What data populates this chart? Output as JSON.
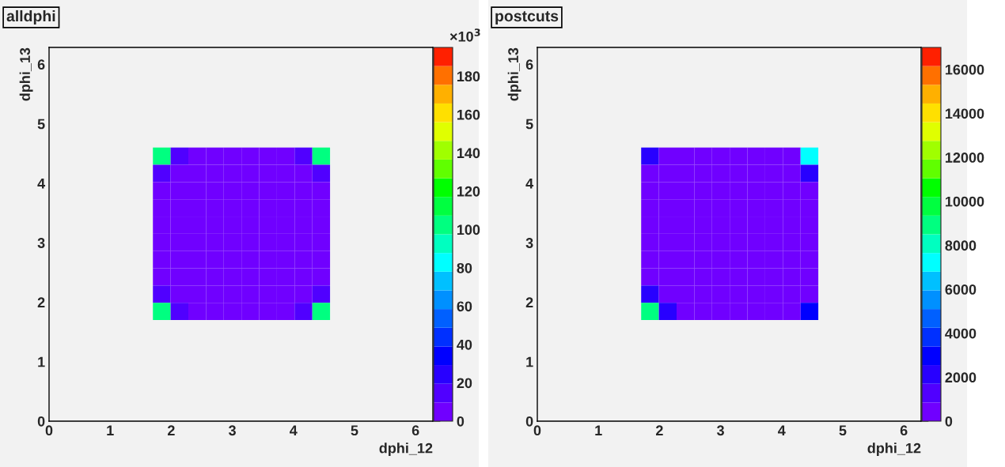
{
  "chart_data": [
    {
      "type": "heatmap",
      "title": "alldphi",
      "xlabel": "dphi_12",
      "ylabel": "dphi_13",
      "annotations": [
        "×10$^{3}$"
      ],
      "x": [
        1.845,
        2.135,
        2.425,
        2.715,
        3.005,
        3.295,
        3.585,
        3.875,
        4.165,
        4.455
      ],
      "y": [
        4.455,
        4.165,
        3.875,
        3.585,
        3.295,
        3.005,
        2.715,
        2.425,
        2.135,
        1.845
      ],
      "xlim": [
        0,
        6.283
      ],
      "ylim": [
        0,
        6.283
      ],
      "xticks": [
        0,
        1,
        2,
        3,
        4,
        5,
        6
      ],
      "yticks": [
        0,
        1,
        2,
        3,
        4,
        5,
        6
      ],
      "clim": [
        0,
        195
      ],
      "cticks": [
        0,
        20,
        40,
        60,
        80,
        100,
        120,
        140,
        160,
        180
      ],
      "colors": [
        "#7000ff",
        "#5000ff",
        "#2800ff",
        "#0000ff",
        "#0030ff",
        "#0060ff",
        "#0090ff",
        "#00c0ff",
        "#00ffff",
        "#00ffc0",
        "#00ff80",
        "#00ff40",
        "#00ff00",
        "#60ff00",
        "#a0ff00",
        "#e0ff00",
        "#ffe000",
        "#ffb000",
        "#ff7000",
        "#ff2000"
      ],
      "cells": [
        [
          100,
          15,
          3,
          3,
          3,
          3,
          3,
          3,
          15,
          100
        ],
        [
          15,
          5,
          3,
          3,
          3,
          3,
          3,
          3,
          5,
          15
        ],
        [
          3,
          3,
          3,
          3,
          3,
          3,
          3,
          3,
          3,
          3
        ],
        [
          3,
          3,
          3,
          3,
          3,
          3,
          3,
          3,
          3,
          3
        ],
        [
          3,
          3,
          3,
          3,
          3,
          3,
          3,
          3,
          3,
          3
        ],
        [
          3,
          3,
          3,
          3,
          3,
          3,
          3,
          3,
          3,
          3
        ],
        [
          3,
          3,
          3,
          3,
          3,
          3,
          3,
          3,
          3,
          3
        ],
        [
          3,
          3,
          3,
          3,
          3,
          3,
          3,
          3,
          3,
          3
        ],
        [
          15,
          5,
          3,
          3,
          3,
          3,
          3,
          3,
          5,
          15
        ],
        [
          100,
          15,
          3,
          3,
          3,
          3,
          3,
          3,
          15,
          100
        ]
      ]
    },
    {
      "type": "heatmap",
      "title": "postcuts",
      "xlabel": "dphi_12",
      "ylabel": "dphi_13",
      "x": [
        1.845,
        2.135,
        2.425,
        2.715,
        3.005,
        3.295,
        3.585,
        3.875,
        4.165,
        4.455
      ],
      "y": [
        4.455,
        4.165,
        3.875,
        3.585,
        3.295,
        3.005,
        2.715,
        2.425,
        2.135,
        1.845
      ],
      "xlim": [
        0,
        6.283
      ],
      "ylim": [
        0,
        6.283
      ],
      "xticks": [
        0,
        1,
        2,
        3,
        4,
        5,
        6
      ],
      "yticks": [
        0,
        1,
        2,
        3,
        4,
        5,
        6
      ],
      "clim": [
        0,
        17000
      ],
      "cticks": [
        0,
        2000,
        4000,
        6000,
        8000,
        10000,
        12000,
        14000,
        16000
      ],
      "colors": [
        "#7000ff",
        "#5000ff",
        "#2800ff",
        "#0000ff",
        "#0030ff",
        "#0060ff",
        "#0090ff",
        "#00c0ff",
        "#00ffff",
        "#00ffc0",
        "#00ff80",
        "#00ff40",
        "#00ff00",
        "#60ff00",
        "#a0ff00",
        "#e0ff00",
        "#ffe000",
        "#ffb000",
        "#ff7000",
        "#ff2000"
      ],
      "cells": [
        [
          2000,
          800,
          300,
          300,
          300,
          300,
          300,
          300,
          800,
          7000
        ],
        [
          800,
          400,
          300,
          300,
          300,
          300,
          300,
          300,
          400,
          2500
        ],
        [
          300,
          300,
          300,
          300,
          300,
          300,
          300,
          300,
          300,
          300
        ],
        [
          300,
          300,
          300,
          300,
          300,
          300,
          300,
          300,
          300,
          300
        ],
        [
          300,
          300,
          300,
          300,
          300,
          300,
          300,
          300,
          300,
          300
        ],
        [
          300,
          300,
          300,
          300,
          300,
          300,
          300,
          300,
          300,
          300
        ],
        [
          300,
          300,
          300,
          300,
          300,
          300,
          300,
          300,
          300,
          300
        ],
        [
          300,
          300,
          300,
          300,
          300,
          300,
          300,
          300,
          300,
          300
        ],
        [
          2500,
          400,
          300,
          300,
          300,
          300,
          300,
          300,
          300,
          800
        ],
        [
          9000,
          2500,
          300,
          300,
          300,
          300,
          300,
          300,
          800,
          3000
        ]
      ]
    }
  ]
}
